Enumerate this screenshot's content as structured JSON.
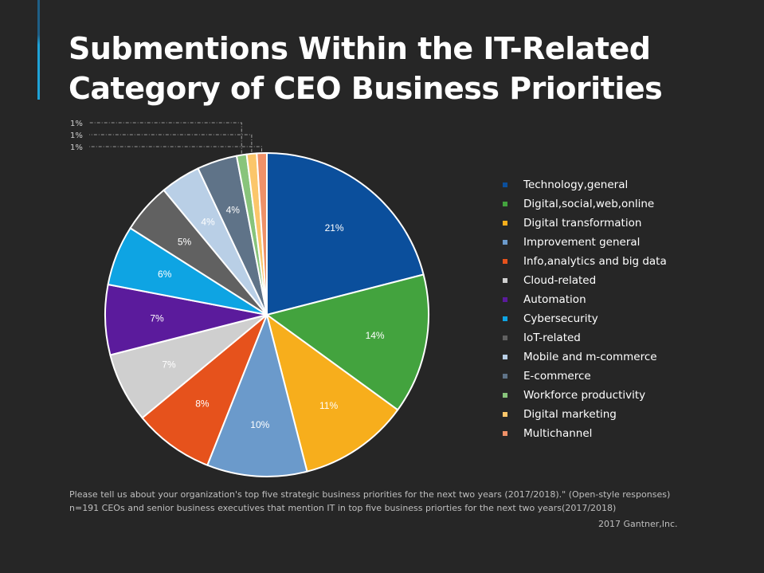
{
  "title": {
    "line1": "Submentions Within the IT-Related",
    "line2": "Category of CEO Business Priorities"
  },
  "chart_data": {
    "type": "pie",
    "title": "Submentions Within the IT-Related Category of CEO Business Priorities",
    "categories": [
      "Technology,general",
      "Digital,social,web,online",
      "Digital transformation",
      "Improvement general",
      "Info,analytics and big data",
      "Cloud-related",
      "Automation",
      "Cybersecurity",
      "IoT-related",
      "Mobile and m-commerce",
      "E-commerce",
      "Workforce productivity",
      "Digital marketing",
      "Multichannel"
    ],
    "values": [
      21,
      14,
      11,
      10,
      8,
      7,
      7,
      6,
      5,
      4,
      4,
      1,
      1,
      1
    ],
    "labels": [
      "21%",
      "14%",
      "11%",
      "10%",
      "8%",
      "7%",
      "7%",
      "6%",
      "5%",
      "4%",
      "4%",
      "1%",
      "1%",
      "1%"
    ],
    "colors": [
      "#0b4f9c",
      "#43a33e",
      "#f7ae1c",
      "#6b9acb",
      "#e6521c",
      "#cfcfcf",
      "#5b1b9c",
      "#0ea4e3",
      "#616161",
      "#b9cfe6",
      "#5f7388",
      "#88c47b",
      "#fbc66a",
      "#ef9168"
    ],
    "legend_position": "right"
  },
  "footnote": {
    "line1": "Please tell us about your organization's top five strategic business priorities for the next two years (2017/2018).\" (Open-style responses)",
    "line2": "n=191 CEOs and senior business executives that mention IT in top five business priorties for the next two years(2017/2018)"
  },
  "source": "2017 Gantner,Inc."
}
